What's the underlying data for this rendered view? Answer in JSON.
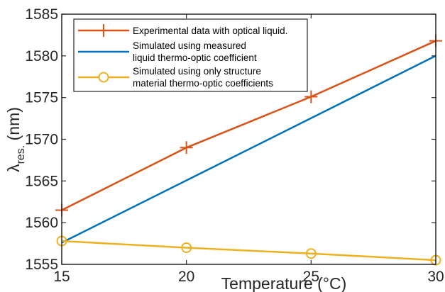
{
  "chart_data": {
    "type": "line",
    "xlabel": "Temperature (°C)",
    "ylabel_main": "λ",
    "ylabel_sub": "res.",
    "ylabel_unit": " (nm)",
    "xlim": [
      15,
      30
    ],
    "ylim": [
      1555,
      1585
    ],
    "xticks": [
      15,
      20,
      25,
      30
    ],
    "yticks": [
      1555,
      1560,
      1565,
      1570,
      1575,
      1580,
      1585
    ],
    "grid": false,
    "legend_position": "top-left",
    "series": [
      {
        "name": "Experimental data with optical liquid.",
        "color": "#D95319",
        "marker": "plus",
        "x": [
          15,
          20,
          25,
          30
        ],
        "y": [
          1561.5,
          1569.0,
          1575.1,
          1581.8
        ]
      },
      {
        "name": "Simulated using measured liquid thermo-optic coefficient",
        "legend_lines": [
          "Simulated using measured",
          " liquid thermo-optic coefficient"
        ],
        "color": "#0072BD",
        "marker": "none",
        "x": [
          15,
          30
        ],
        "y": [
          1557.6,
          1580.0
        ]
      },
      {
        "name": "Simulated using only structure material thermo-optic coefficients",
        "legend_lines": [
          "Simulated using only structure",
          " material thermo-optic coefficients"
        ],
        "color": "#EDB120",
        "marker": "circle",
        "x": [
          15,
          20,
          25,
          30
        ],
        "y": [
          1557.8,
          1557.0,
          1556.3,
          1555.5
        ]
      }
    ]
  }
}
